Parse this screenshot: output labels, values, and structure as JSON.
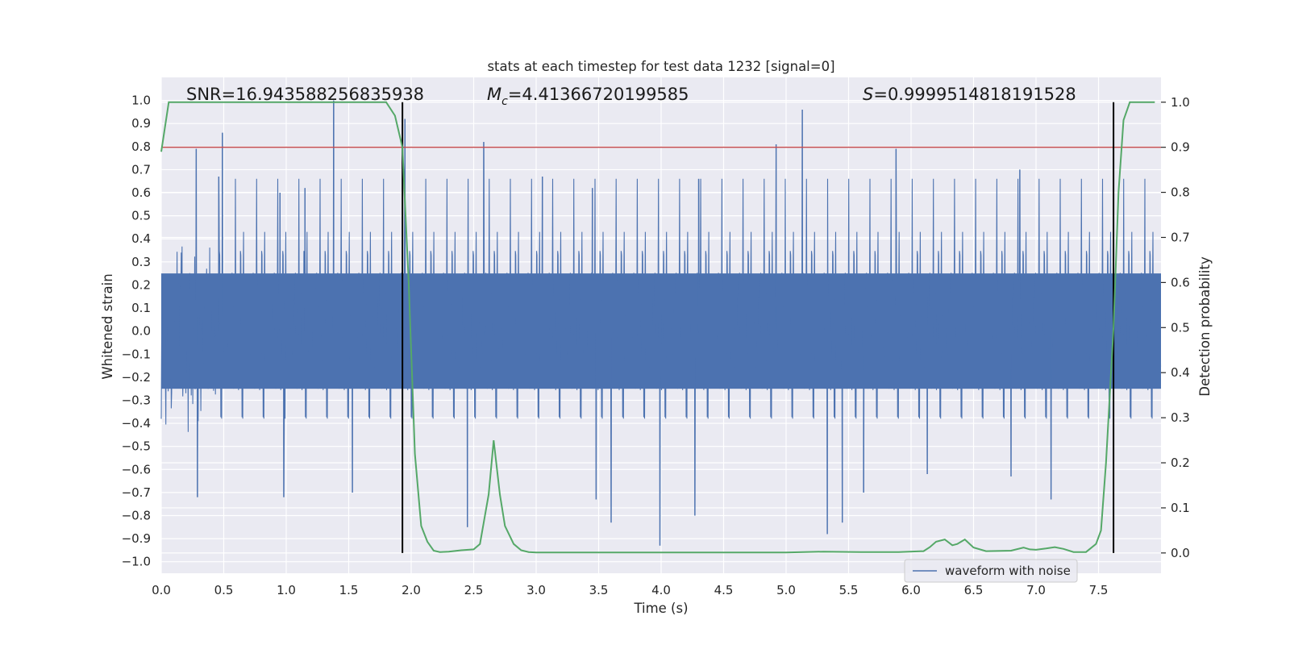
{
  "chart_data": {
    "type": "line",
    "title": "stats at each timestep for test data 1232 [signal=0]",
    "xlabel": "Time (s)",
    "ylabel": "Whitened strain",
    "y2label": "Detection probability",
    "xlim": [
      0,
      8
    ],
    "ylim": [
      -1.05,
      1.1
    ],
    "y2lim": [
      -0.045,
      1.055
    ],
    "x_ticks": [
      0.0,
      0.5,
      1.0,
      1.5,
      2.0,
      2.5,
      3.0,
      3.5,
      4.0,
      4.5,
      5.0,
      5.5,
      6.0,
      6.5,
      7.0,
      7.5
    ],
    "x_tick_labels": [
      "0.0",
      "0.5",
      "1.0",
      "1.5",
      "2.0",
      "2.5",
      "3.0",
      "3.5",
      "4.0",
      "4.5",
      "5.0",
      "5.5",
      "6.0",
      "6.5",
      "7.0",
      "7.5"
    ],
    "y_ticks": [
      1.0,
      0.9,
      0.8,
      0.7,
      0.6,
      0.5,
      0.4,
      0.3,
      0.2,
      0.1,
      0.0,
      -0.1,
      -0.2,
      -0.3,
      -0.4,
      -0.5,
      -0.6,
      -0.7,
      -0.8,
      -0.9,
      -1.0
    ],
    "y_tick_labels": [
      "1.0",
      "0.9",
      "0.8",
      "0.7",
      "0.6",
      "0.5",
      "0.4",
      "0.3",
      "0.2",
      "0.1",
      "0.0",
      "−0.1",
      "−0.2",
      "−0.3",
      "−0.4",
      "−0.5",
      "−0.6",
      "−0.7",
      "−0.8",
      "−0.9",
      "−1.0"
    ],
    "y2_ticks": [
      1.0,
      0.9,
      0.8,
      0.7,
      0.6,
      0.5,
      0.4,
      0.3,
      0.2,
      0.1,
      0.0
    ],
    "y2_tick_labels": [
      "1.0",
      "0.9",
      "0.8",
      "0.7",
      "0.6",
      "0.5",
      "0.4",
      "0.3",
      "0.2",
      "0.1",
      "0.0"
    ],
    "annotations": {
      "snr": "SNR=16.943588256835938",
      "mc_symbol": "M",
      "mc_sub": "c",
      "mc_value": "=4.41366720199585",
      "s_symbol": "S",
      "s_value": "=0.9999514818191528"
    },
    "legend": {
      "label": "waveform with noise",
      "location": "lower-right"
    },
    "threshold": {
      "y2": 0.9,
      "color": "#c44e52"
    },
    "vlines": [
      1.93,
      7.62
    ],
    "waveform": {
      "name": "waveform with noise",
      "color": "#4c72b0",
      "envelope": {
        "upper": [
          0.25,
          0.45
        ],
        "lower": [
          -0.25,
          -0.45
        ]
      },
      "spikes": [
        {
          "x": 0.28,
          "y": 0.79
        },
        {
          "x": 0.49,
          "y": 0.86
        },
        {
          "x": 0.46,
          "y": 0.67
        },
        {
          "x": 1.38,
          "y": 1.0
        },
        {
          "x": 1.95,
          "y": 0.92
        },
        {
          "x": 2.58,
          "y": 0.82
        },
        {
          "x": 4.92,
          "y": 0.81
        },
        {
          "x": 5.13,
          "y": 0.96
        },
        {
          "x": 5.88,
          "y": 0.79
        },
        {
          "x": 0.95,
          "y": 0.6
        },
        {
          "x": 1.15,
          "y": 0.62
        },
        {
          "x": 3.05,
          "y": 0.67
        },
        {
          "x": 3.45,
          "y": 0.62
        },
        {
          "x": 4.3,
          "y": 0.66
        },
        {
          "x": 6.87,
          "y": 0.7
        },
        {
          "x": 0.29,
          "y": -0.72
        },
        {
          "x": 0.98,
          "y": -0.72
        },
        {
          "x": 1.53,
          "y": -0.7
        },
        {
          "x": 2.45,
          "y": -0.85
        },
        {
          "x": 3.6,
          "y": -0.83
        },
        {
          "x": 3.99,
          "y": -0.93
        },
        {
          "x": 4.27,
          "y": -0.8
        },
        {
          "x": 5.33,
          "y": -0.88
        },
        {
          "x": 5.45,
          "y": -0.83
        },
        {
          "x": 7.12,
          "y": -0.73
        },
        {
          "x": 3.48,
          "y": -0.73
        },
        {
          "x": 5.62,
          "y": -0.7
        },
        {
          "x": 6.13,
          "y": -0.62
        },
        {
          "x": 6.8,
          "y": -0.63
        }
      ]
    },
    "detection_probability": {
      "name": "detection probability",
      "color": "#55a868",
      "x": [
        0.0,
        0.06,
        0.2,
        0.5,
        1.0,
        1.5,
        1.8,
        1.87,
        1.93,
        1.98,
        2.03,
        2.08,
        2.13,
        2.18,
        2.23,
        2.3,
        2.4,
        2.5,
        2.55,
        2.62,
        2.66,
        2.71,
        2.75,
        2.82,
        2.88,
        2.94,
        3.0,
        3.5,
        4.0,
        4.5,
        5.0,
        5.3,
        5.6,
        5.9,
        6.1,
        6.15,
        6.2,
        6.27,
        6.33,
        6.37,
        6.43,
        6.5,
        6.6,
        6.8,
        6.9,
        6.95,
        7.0,
        7.08,
        7.15,
        7.22,
        7.3,
        7.4,
        7.48,
        7.52,
        7.56,
        7.62,
        7.66,
        7.7,
        7.75,
        7.82,
        7.95
      ],
      "y": [
        0.89,
        1.0,
        1.0,
        1.0,
        1.0,
        1.0,
        1.0,
        0.97,
        0.9,
        0.6,
        0.22,
        0.06,
        0.025,
        0.005,
        0.002,
        0.003,
        0.006,
        0.008,
        0.02,
        0.13,
        0.25,
        0.13,
        0.06,
        0.02,
        0.006,
        0.002,
        0.001,
        0.001,
        0.001,
        0.001,
        0.001,
        0.003,
        0.002,
        0.002,
        0.004,
        0.013,
        0.025,
        0.03,
        0.017,
        0.02,
        0.03,
        0.012,
        0.004,
        0.005,
        0.012,
        0.008,
        0.007,
        0.01,
        0.013,
        0.009,
        0.002,
        0.002,
        0.02,
        0.05,
        0.2,
        0.5,
        0.8,
        0.96,
        1.0,
        1.0,
        1.0
      ]
    }
  }
}
